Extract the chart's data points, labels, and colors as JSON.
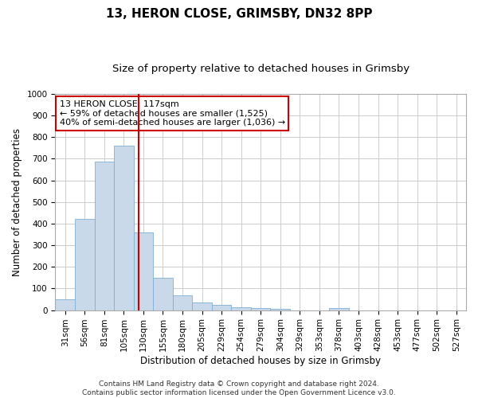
{
  "title1": "13, HERON CLOSE, GRIMSBY, DN32 8PP",
  "title2": "Size of property relative to detached houses in Grimsby",
  "xlabel": "Distribution of detached houses by size in Grimsby",
  "ylabel": "Number of detached properties",
  "bar_labels": [
    "31sqm",
    "56sqm",
    "81sqm",
    "105sqm",
    "130sqm",
    "155sqm",
    "180sqm",
    "205sqm",
    "229sqm",
    "254sqm",
    "279sqm",
    "304sqm",
    "329sqm",
    "353sqm",
    "378sqm",
    "403sqm",
    "428sqm",
    "453sqm",
    "477sqm",
    "502sqm",
    "527sqm"
  ],
  "bar_values": [
    50,
    420,
    685,
    760,
    360,
    150,
    70,
    35,
    25,
    15,
    10,
    5,
    0,
    0,
    10,
    0,
    0,
    0,
    0,
    0,
    0
  ],
  "bar_color": "#c9d9ea",
  "bar_edge_color": "#7bafd4",
  "vline_x": 3.75,
  "vline_color": "#cc0000",
  "annotation_line1": "13 HERON CLOSE: 117sqm",
  "annotation_line2": "← 59% of detached houses are smaller (1,525)",
  "annotation_line3": "40% of semi-detached houses are larger (1,036) →",
  "annotation_box_color": "#ffffff",
  "annotation_box_edge": "#cc0000",
  "ylim": [
    0,
    1000
  ],
  "yticks": [
    0,
    100,
    200,
    300,
    400,
    500,
    600,
    700,
    800,
    900,
    1000
  ],
  "footer1": "Contains HM Land Registry data © Crown copyright and database right 2024.",
  "footer2": "Contains public sector information licensed under the Open Government Licence v3.0.",
  "bg_color": "#ffffff",
  "grid_color": "#cccccc",
  "title1_fontsize": 11,
  "title2_fontsize": 9.5,
  "xlabel_fontsize": 8.5,
  "ylabel_fontsize": 8.5,
  "tick_fontsize": 7.5,
  "footer_fontsize": 6.5,
  "annot_fontsize": 8
}
